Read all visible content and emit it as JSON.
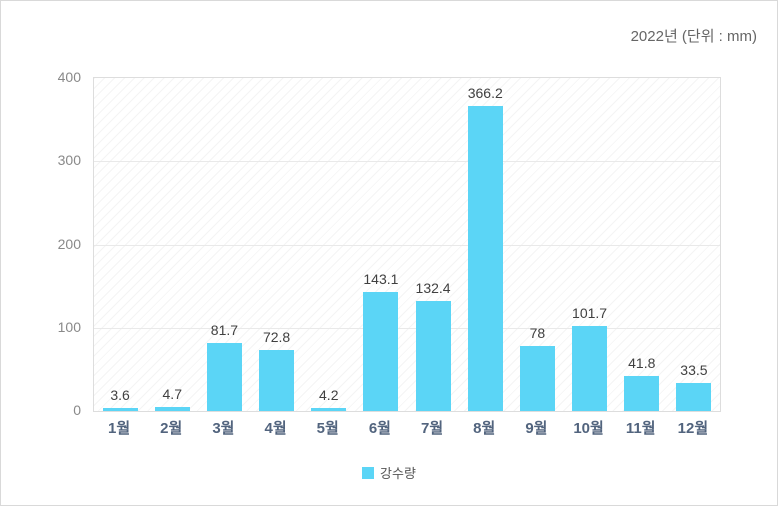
{
  "header": {
    "title": "2022년 (단위 : mm)"
  },
  "chart_data": {
    "type": "bar",
    "title": "2022년 (단위 : mm)",
    "categories": [
      "1월",
      "2월",
      "3월",
      "4월",
      "5월",
      "6월",
      "7월",
      "8월",
      "9월",
      "10월",
      "11월",
      "12월"
    ],
    "series": [
      {
        "name": "강수량",
        "values": [
          3.6,
          4.7,
          81.7,
          72.8,
          4.2,
          143.1,
          132.4,
          366.2,
          78,
          101.7,
          41.8,
          33.5
        ]
      }
    ],
    "value_labels": [
      "3.6",
      "4.7",
      "81.7",
      "72.8",
      "4.2",
      "143.1",
      "132.4",
      "366.2",
      "78",
      "101.7",
      "41.8",
      "33.5"
    ],
    "xlabel": "",
    "ylabel": "",
    "ylim": [
      0,
      400
    ],
    "yticks": [
      0,
      100,
      200,
      300,
      400
    ],
    "grid": "horizontal",
    "legend_position": "bottom",
    "colors": {
      "bar": "#5bd5f6",
      "value_label": "#404040",
      "x_tick_label": "#52647e",
      "y_tick_label": "#898989",
      "gridline": "#e9e9e9",
      "plot_border": "#dddddd",
      "title": "#666666"
    }
  },
  "legend": {
    "items": [
      {
        "label": "강수량",
        "swatch_color": "#5bd5f6"
      }
    ]
  }
}
